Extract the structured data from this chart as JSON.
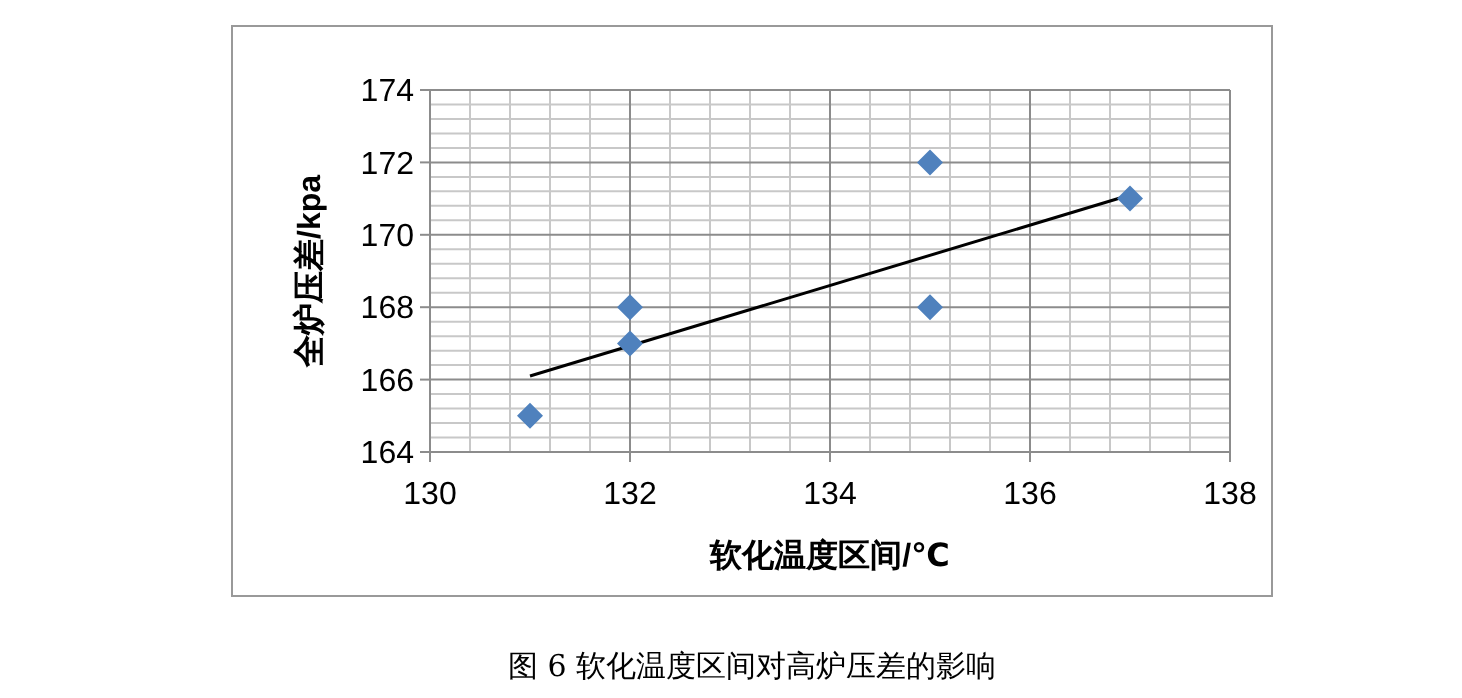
{
  "chart_data": {
    "type": "scatter",
    "xlabel": "软化温度区间/℃",
    "ylabel": "全炉压差/kpa",
    "annotations": [
      "图 6 软化温度区间对高炉压差的影响"
    ],
    "xlim": [
      130,
      138
    ],
    "xticks": [
      130,
      132,
      134,
      136,
      138
    ],
    "ylim": [
      164,
      174
    ],
    "yticks": [
      164,
      166,
      168,
      170,
      172,
      174
    ],
    "grid": true,
    "marker": "diamond",
    "series": [
      {
        "color": "#4f81bd",
        "x": [
          131,
          132,
          132,
          135,
          135,
          137
        ],
        "values": [
          165,
          168,
          167,
          172,
          168,
          171
        ]
      },
      {
        "type": "line",
        "color": "#000000",
        "marker": "none",
        "x": [
          131,
          137
        ],
        "values": [
          166.1,
          171.1
        ]
      }
    ]
  }
}
